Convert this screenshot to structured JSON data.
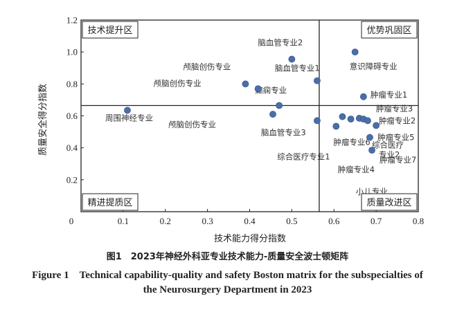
{
  "chart_data": {
    "type": "scatter",
    "xlabel": "技术能力得分指数",
    "ylabel": "质量安全得分指数",
    "xlim": [
      0,
      0.8
    ],
    "ylim": [
      0,
      1.2
    ],
    "x_ticks": [
      "0",
      "0.1",
      "0.2",
      "0.3",
      "0.4",
      "0.5",
      "0.6",
      "0.7",
      "0.8"
    ],
    "y_ticks": [
      "0",
      "0.2",
      "0.4",
      "0.6",
      "0.8",
      "1.0",
      "1.2"
    ],
    "divider_x": 0.565,
    "divider_y": 0.665,
    "quadrants": {
      "top_left": "技术提升区",
      "top_right": "优势巩固区",
      "bottom_left": "精进提质区",
      "bottom_right": "质量改进区"
    },
    "point_color": "#4a6fa8",
    "points": [
      {
        "label": "周围神经专业",
        "x": 0.11,
        "y": 0.635
      },
      {
        "label": "颅脑创伤专业",
        "x": 0.39,
        "y": 0.8
      },
      {
        "label": "颅脑创伤专业",
        "x": 0.42,
        "y": 0.77
      },
      {
        "label": "颅脑创伤专业",
        "x": 0.455,
        "y": 0.61
      },
      {
        "label": "脑血管专业2",
        "x": 0.5,
        "y": 0.955
      },
      {
        "label": "脑血管专业1",
        "x": 0.56,
        "y": 0.82
      },
      {
        "label": "癫痫专业",
        "x": 0.47,
        "y": 0.665
      },
      {
        "label": "脑血管专业3",
        "x": 0.56,
        "y": 0.57
      },
      {
        "label": "意识障碍专业",
        "x": 0.65,
        "y": 1.0
      },
      {
        "label": "肿瘤专业1",
        "x": 0.67,
        "y": 0.72
      },
      {
        "label": "综合医疗专业1",
        "x": 0.605,
        "y": 0.535
      },
      {
        "label": "肿瘤专业6",
        "x": 0.62,
        "y": 0.595
      },
      {
        "label": "肿瘤专业4",
        "x": 0.64,
        "y": 0.58
      },
      {
        "label": "小儿专业",
        "x": 0.66,
        "y": 0.585
      },
      {
        "label": "肿瘤专业3",
        "x": 0.67,
        "y": 0.58
      },
      {
        "label": "肿瘤专业2",
        "x": 0.68,
        "y": 0.57
      },
      {
        "label": "肿瘤专业5",
        "x": 0.7,
        "y": 0.54
      },
      {
        "label": "综合医疗专业2",
        "x": 0.685,
        "y": 0.465
      },
      {
        "label": "肿瘤专业7",
        "x": 0.69,
        "y": 0.385
      }
    ]
  },
  "captions": {
    "zh": "图1　2023年神经外科亚专业技术能力-质量安全波士顿矩阵",
    "en_line1": "Figure 1　Technical capability-quality and safety Boston matrix for the subspecialties of",
    "en_line2": "the Neurosurgery Department in 2023"
  }
}
